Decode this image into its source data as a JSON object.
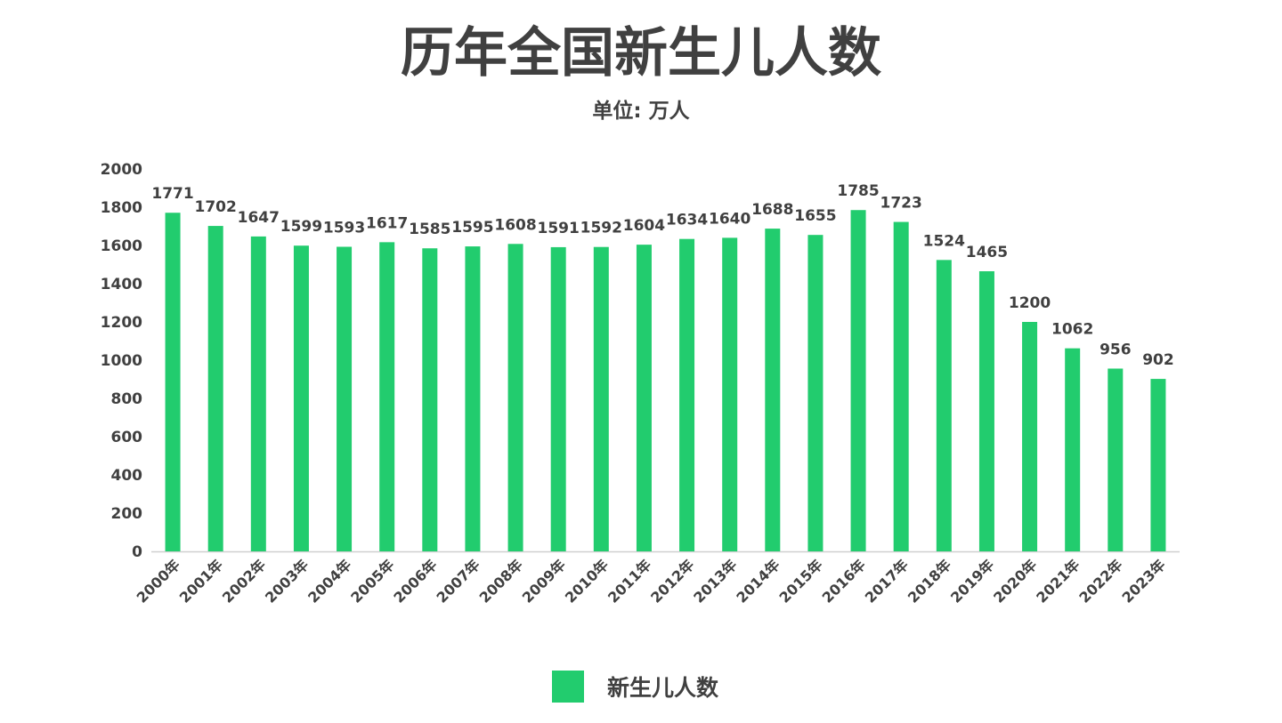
{
  "chart_data": {
    "type": "bar",
    "title": "历年全国新生儿人数",
    "subtitle": "单位: 万人",
    "categories": [
      "2000年",
      "2001年",
      "2002年",
      "2003年",
      "2004年",
      "2005年",
      "2006年",
      "2007年",
      "2008年",
      "2009年",
      "2010年",
      "2011年",
      "2012年",
      "2013年",
      "2014年",
      "2015年",
      "2016年",
      "2017年",
      "2018年",
      "2019年",
      "2020年",
      "2021年",
      "2022年",
      "2023年"
    ],
    "series": [
      {
        "name": "新生儿人数",
        "color": "#22cc6e",
        "values": [
          1771,
          1702,
          1647,
          1599,
          1593,
          1617,
          1585,
          1595,
          1608,
          1591,
          1592,
          1604,
          1634,
          1640,
          1688,
          1655,
          1785,
          1723,
          1524,
          1465,
          1200,
          1062,
          956,
          902
        ]
      }
    ],
    "ylim": [
      0,
      2000
    ],
    "yticks": [
      "0",
      "200",
      "400",
      "600",
      "800",
      "1000",
      "1200",
      "1400",
      "1600",
      "1800",
      "2000"
    ],
    "grid": false,
    "legend_position": "bottom-center"
  }
}
